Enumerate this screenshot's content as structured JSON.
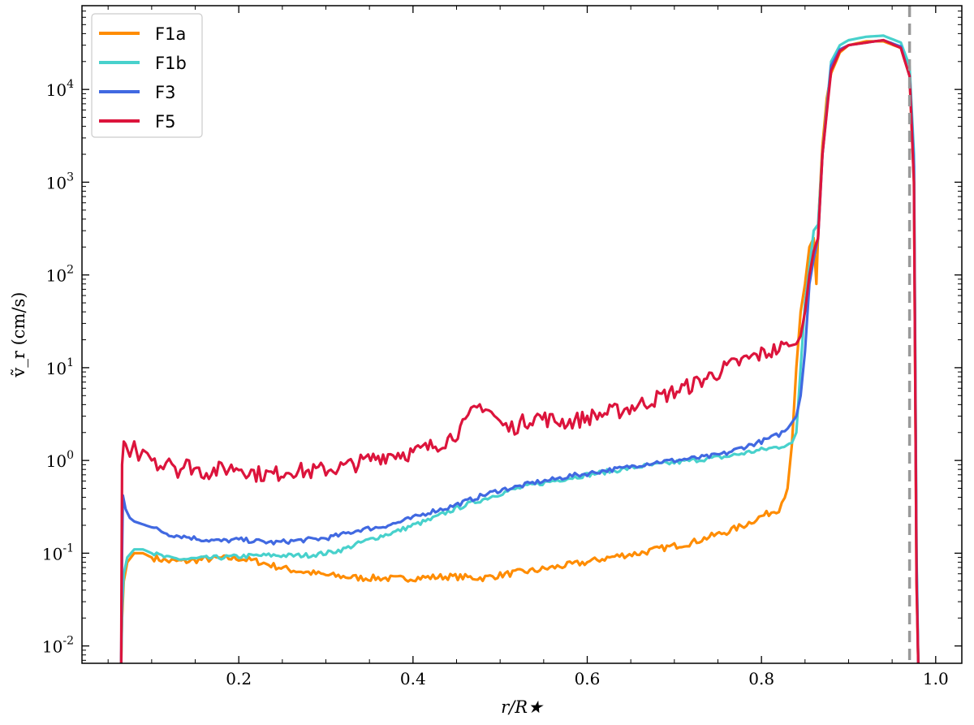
{
  "chart_data": {
    "type": "line",
    "xlabel": "r/R★",
    "ylabel": "ṽ_r (cm/s)",
    "xlim": [
      0.02,
      1.03
    ],
    "ylim": [
      0.0065,
      80000
    ],
    "yscale": "log",
    "xticks": [
      0.2,
      0.4,
      0.6,
      0.8,
      1.0
    ],
    "xtick_labels": [
      "0.2",
      "0.4",
      "0.6",
      "0.8",
      "1.0"
    ],
    "yticks": [
      {
        "value": 0.01,
        "base": "10",
        "exp": "-2"
      },
      {
        "value": 0.1,
        "base": "10",
        "exp": "-1"
      },
      {
        "value": 1,
        "base": "10",
        "exp": "0"
      },
      {
        "value": 10,
        "base": "10",
        "exp": "1"
      },
      {
        "value": 100,
        "base": "10",
        "exp": "2"
      },
      {
        "value": 1000,
        "base": "10",
        "exp": "3"
      },
      {
        "value": 10000,
        "base": "10",
        "exp": "4"
      }
    ],
    "legend_position": "top-left",
    "vline": {
      "x": 0.97,
      "style": "dashed",
      "color": "#999999"
    },
    "series": [
      {
        "name": "F1a",
        "color": "#ff8c00",
        "x": [
          0.065,
          0.066,
          0.068,
          0.072,
          0.08,
          0.09,
          0.1,
          0.12,
          0.14,
          0.16,
          0.18,
          0.2,
          0.22,
          0.24,
          0.26,
          0.28,
          0.3,
          0.32,
          0.34,
          0.36,
          0.38,
          0.4,
          0.42,
          0.44,
          0.46,
          0.48,
          0.5,
          0.52,
          0.54,
          0.56,
          0.58,
          0.6,
          0.62,
          0.64,
          0.66,
          0.68,
          0.7,
          0.72,
          0.74,
          0.76,
          0.78,
          0.8,
          0.82,
          0.83,
          0.835,
          0.84,
          0.845,
          0.85,
          0.855,
          0.86,
          0.863,
          0.866,
          0.87,
          0.875,
          0.88,
          0.89,
          0.9,
          0.92,
          0.94,
          0.96,
          0.97,
          0.975,
          0.978,
          0.98
        ],
        "y": [
          0.0065,
          0.02,
          0.05,
          0.08,
          0.1,
          0.1,
          0.09,
          0.082,
          0.082,
          0.086,
          0.088,
          0.088,
          0.082,
          0.073,
          0.066,
          0.062,
          0.058,
          0.056,
          0.054,
          0.054,
          0.053,
          0.054,
          0.055,
          0.056,
          0.055,
          0.054,
          0.058,
          0.062,
          0.065,
          0.07,
          0.075,
          0.08,
          0.088,
          0.095,
          0.1,
          0.11,
          0.12,
          0.13,
          0.15,
          0.17,
          0.2,
          0.25,
          0.3,
          0.5,
          1.5,
          10,
          40,
          80,
          200,
          250,
          80,
          500,
          2500,
          8000,
          15000,
          25000,
          30000,
          33000,
          33000,
          28000,
          14000,
          1000,
          0.05,
          0.0065
        ]
      },
      {
        "name": "F1b",
        "color": "#48d1cc",
        "x": [
          0.065,
          0.066,
          0.068,
          0.072,
          0.08,
          0.09,
          0.1,
          0.12,
          0.14,
          0.16,
          0.18,
          0.2,
          0.22,
          0.24,
          0.26,
          0.28,
          0.3,
          0.32,
          0.34,
          0.36,
          0.38,
          0.4,
          0.42,
          0.44,
          0.46,
          0.48,
          0.5,
          0.52,
          0.54,
          0.56,
          0.58,
          0.6,
          0.62,
          0.64,
          0.66,
          0.68,
          0.7,
          0.72,
          0.74,
          0.76,
          0.78,
          0.8,
          0.82,
          0.835,
          0.84,
          0.845,
          0.85,
          0.855,
          0.86,
          0.865,
          0.87,
          0.88,
          0.89,
          0.9,
          0.92,
          0.94,
          0.96,
          0.97,
          0.975,
          0.978,
          0.98
        ],
        "y": [
          0.0065,
          0.025,
          0.06,
          0.09,
          0.11,
          0.11,
          0.1,
          0.088,
          0.086,
          0.088,
          0.09,
          0.092,
          0.094,
          0.095,
          0.094,
          0.095,
          0.1,
          0.11,
          0.13,
          0.15,
          0.17,
          0.2,
          0.23,
          0.28,
          0.33,
          0.38,
          0.44,
          0.5,
          0.55,
          0.6,
          0.65,
          0.7,
          0.75,
          0.8,
          0.86,
          0.9,
          0.95,
          1.0,
          1.05,
          1.1,
          1.2,
          1.3,
          1.4,
          1.55,
          2.0,
          10,
          50,
          120,
          300,
          350,
          2000,
          20000,
          30000,
          34000,
          37000,
          38000,
          32000,
          18000,
          2000,
          0.1,
          0.0065
        ]
      },
      {
        "name": "F3",
        "color": "#4169e1",
        "x": [
          0.065,
          0.066,
          0.067,
          0.07,
          0.075,
          0.08,
          0.1,
          0.12,
          0.14,
          0.16,
          0.18,
          0.2,
          0.22,
          0.24,
          0.26,
          0.28,
          0.3,
          0.32,
          0.34,
          0.36,
          0.38,
          0.4,
          0.42,
          0.44,
          0.46,
          0.48,
          0.5,
          0.52,
          0.54,
          0.56,
          0.58,
          0.6,
          0.62,
          0.64,
          0.66,
          0.68,
          0.7,
          0.72,
          0.74,
          0.76,
          0.78,
          0.8,
          0.82,
          0.83,
          0.84,
          0.845,
          0.85,
          0.855,
          0.86,
          0.865,
          0.87,
          0.88,
          0.89,
          0.9,
          0.92,
          0.94,
          0.96,
          0.97,
          0.975,
          0.978,
          0.98
        ],
        "y": [
          0.0065,
          0.1,
          0.42,
          0.3,
          0.24,
          0.22,
          0.19,
          0.16,
          0.15,
          0.14,
          0.135,
          0.14,
          0.135,
          0.13,
          0.135,
          0.14,
          0.145,
          0.16,
          0.18,
          0.19,
          0.21,
          0.24,
          0.28,
          0.31,
          0.36,
          0.42,
          0.48,
          0.52,
          0.58,
          0.62,
          0.68,
          0.72,
          0.78,
          0.82,
          0.9,
          0.96,
          1.0,
          1.05,
          1.1,
          1.2,
          1.4,
          1.6,
          1.9,
          2.2,
          3.0,
          5.0,
          15,
          80,
          150,
          250,
          2000,
          18000,
          27000,
          30000,
          32000,
          34000,
          29000,
          14000,
          1500,
          0.08,
          0.0065
        ]
      },
      {
        "name": "F5",
        "color": "#dc143c",
        "x": [
          0.065,
          0.066,
          0.068,
          0.07,
          0.075,
          0.08,
          0.085,
          0.09,
          0.095,
          0.1,
          0.11,
          0.12,
          0.13,
          0.14,
          0.16,
          0.18,
          0.2,
          0.22,
          0.24,
          0.26,
          0.28,
          0.3,
          0.32,
          0.34,
          0.36,
          0.38,
          0.4,
          0.42,
          0.44,
          0.46,
          0.47,
          0.48,
          0.49,
          0.5,
          0.51,
          0.52,
          0.54,
          0.56,
          0.58,
          0.6,
          0.62,
          0.64,
          0.66,
          0.68,
          0.7,
          0.72,
          0.74,
          0.76,
          0.78,
          0.8,
          0.82,
          0.84,
          0.845,
          0.85,
          0.855,
          0.86,
          0.865,
          0.87,
          0.88,
          0.89,
          0.9,
          0.92,
          0.94,
          0.96,
          0.97,
          0.975,
          0.978,
          0.98
        ],
        "y": [
          0.0065,
          0.9,
          1.6,
          1.5,
          1.1,
          1.6,
          1.0,
          1.3,
          1.2,
          1.0,
          0.9,
          1.1,
          0.8,
          0.9,
          0.75,
          0.8,
          0.85,
          0.72,
          0.7,
          0.8,
          0.75,
          0.8,
          0.85,
          0.95,
          1.1,
          1.2,
          1.2,
          1.4,
          1.7,
          2.4,
          3.5,
          4.0,
          3.3,
          2.5,
          2.2,
          2.4,
          3.0,
          2.7,
          2.6,
          2.9,
          3.2,
          3.5,
          4.0,
          4.7,
          5.5,
          6.5,
          8.0,
          10,
          12,
          14,
          16,
          18,
          22,
          40,
          100,
          180,
          250,
          2000,
          16000,
          26000,
          30000,
          32000,
          34000,
          28000,
          14000,
          1000,
          0.05,
          0.0065
        ]
      }
    ]
  }
}
